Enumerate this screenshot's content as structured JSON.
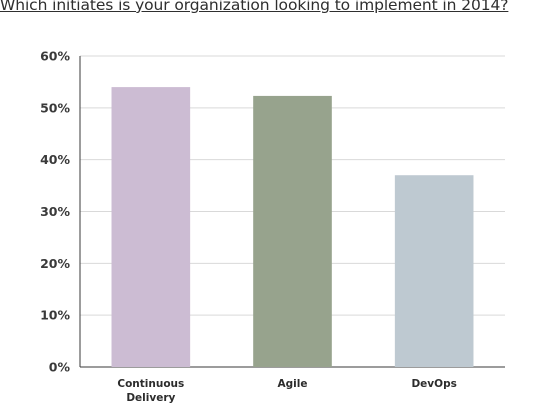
{
  "title": "Which initiates is your organization looking to implement in 2014?",
  "chart_data": {
    "type": "bar",
    "title": "Which initiates is your organization looking to implement in 2014?",
    "xlabel": "",
    "ylabel": "",
    "categories": [
      [
        "Continuous",
        "Delivery"
      ],
      [
        "Agile"
      ],
      [
        "DevOps"
      ]
    ],
    "values": [
      54,
      52.3,
      37
    ],
    "ylim": [
      0,
      60
    ],
    "yticks": [
      0,
      10,
      20,
      30,
      40,
      50,
      60
    ],
    "ytick_labels": [
      "0%",
      "10%",
      "20%",
      "30%",
      "40%",
      "50%",
      "60%"
    ],
    "colors": [
      "#ccbcd3",
      "#97a38d",
      "#bec9d1"
    ],
    "grid": true,
    "legend": "none"
  }
}
